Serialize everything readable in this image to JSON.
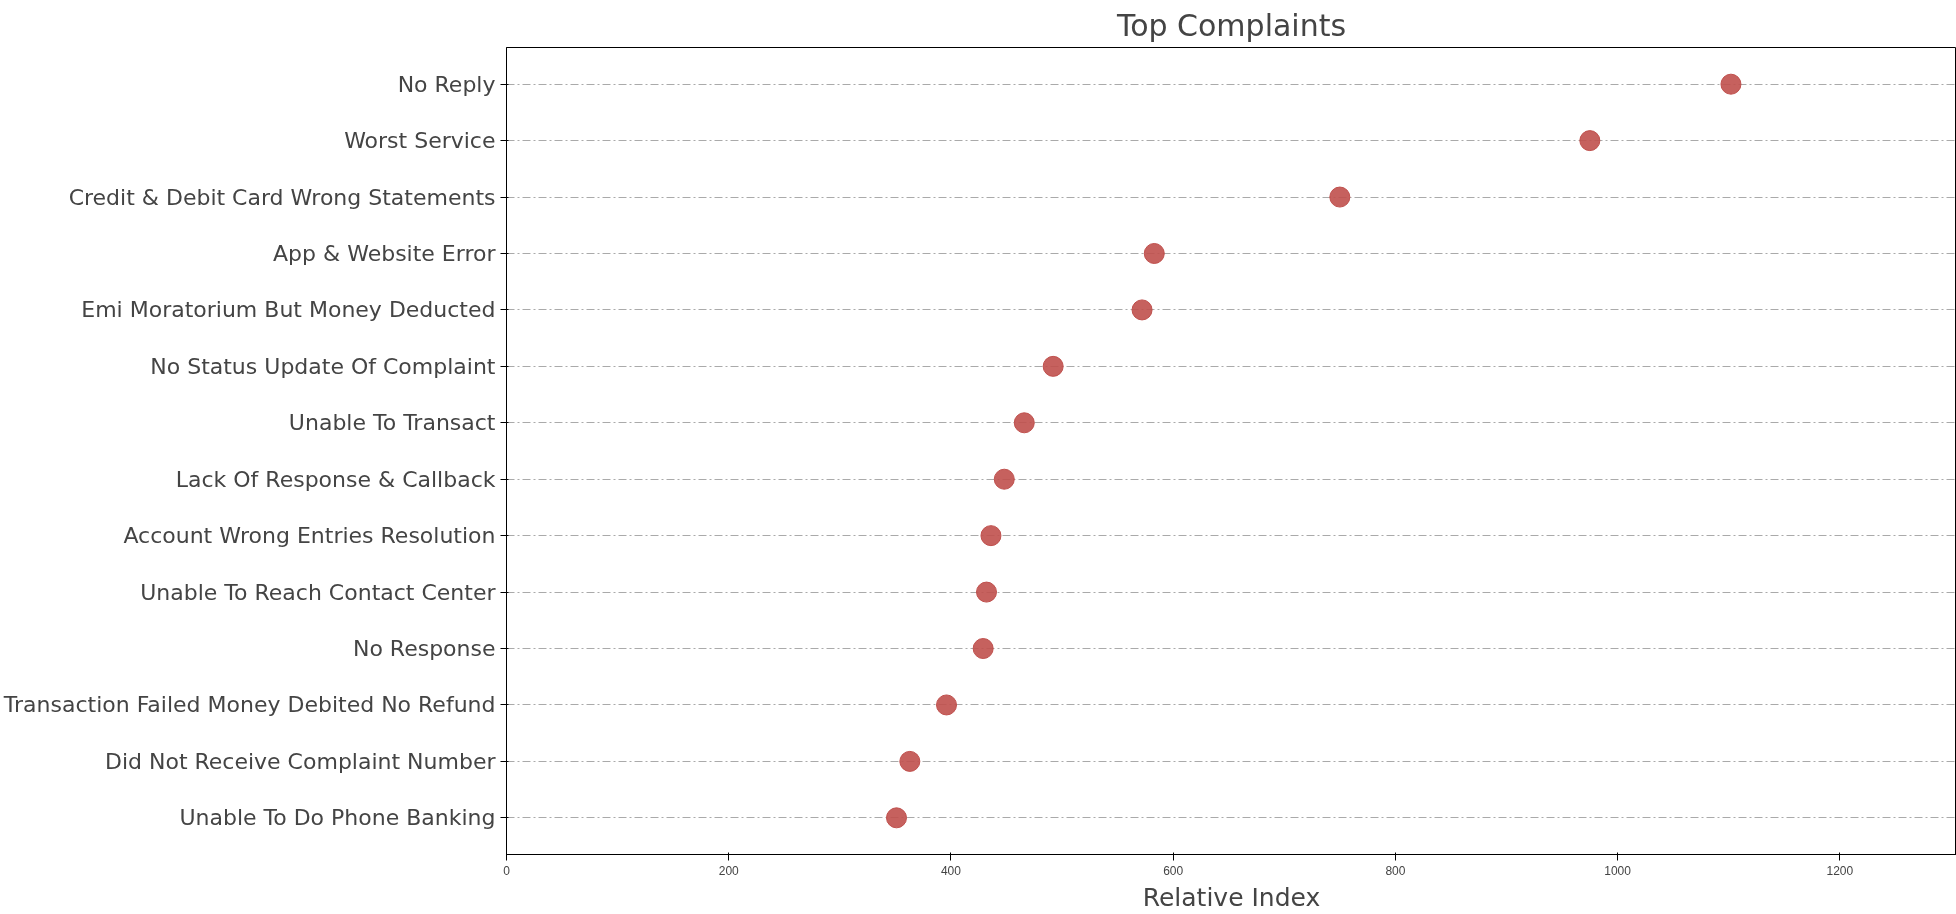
{
  "chart_data": {
    "type": "scatter",
    "orientation": "horizontal",
    "title": "Top Complaints",
    "xlabel": "Relative Index",
    "categories": [
      "No Reply",
      "Worst Service",
      "Credit & Debit Card Wrong Statements",
      "App & Website Error",
      "Emi Moratorium But Money Deducted",
      "No Status Update Of Complaint",
      "Unable To Transact",
      "Lack Of Response & Callback",
      "Account Wrong Entries Resolution",
      "Unable To Reach Contact Center",
      "No Response",
      "Transaction Failed Money Debited No Refund",
      "Did Not Receive Complaint Number",
      "Unable To Do Phone Banking"
    ],
    "series": [
      {
        "color": "#c0504d",
        "values": [
          1102,
          975,
          750,
          583,
          572,
          492,
          466,
          448,
          436,
          432,
          429,
          396,
          363,
          351
        ]
      }
    ],
    "xlim": [
      0,
      1305
    ],
    "xticks": [
      0,
      200,
      400,
      600,
      800,
      1000,
      1200
    ],
    "grid": "y",
    "marker": "circle",
    "line_style": "dashdot"
  }
}
